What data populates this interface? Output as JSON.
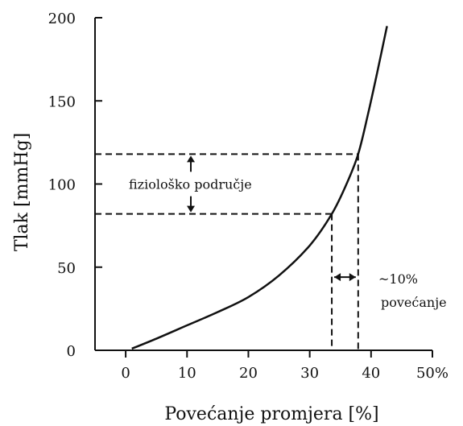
{
  "chart_data": {
    "type": "line",
    "title": "",
    "xlabel": "Povećanje promjera [%]",
    "ylabel": "Tlak [mmHg]",
    "xlim": [
      -5,
      50
    ],
    "ylim": [
      0,
      200
    ],
    "x_ticks": [
      {
        "value": 0,
        "label": "0"
      },
      {
        "value": 10,
        "label": "10"
      },
      {
        "value": 20,
        "label": "20"
      },
      {
        "value": 30,
        "label": "30"
      },
      {
        "value": 40,
        "label": "40"
      },
      {
        "value": 50,
        "label": "50%"
      }
    ],
    "y_ticks": [
      {
        "value": 0,
        "label": "0"
      },
      {
        "value": 50,
        "label": "50"
      },
      {
        "value": 100,
        "label": "100"
      },
      {
        "value": 150,
        "label": "150"
      },
      {
        "value": 200,
        "label": "200"
      }
    ],
    "grid": false,
    "series": [
      {
        "x": [
          1,
          5,
          10,
          15,
          20,
          25,
          30,
          33.6,
          36,
          37.9,
          39.5,
          41,
          42.6
        ],
        "y": [
          1,
          7,
          15,
          23,
          32,
          45,
          63,
          82,
          100,
          118,
          142,
          167,
          195
        ]
      }
    ],
    "reference_lines": {
      "pressure_low": 82,
      "pressure_high": 118,
      "diameter_low": 33.6,
      "diameter_high": 37.9
    },
    "annotations": {
      "physiological_range": "fiziološko područje",
      "increase_value": "~10%",
      "increase_word": "povećanje"
    }
  }
}
